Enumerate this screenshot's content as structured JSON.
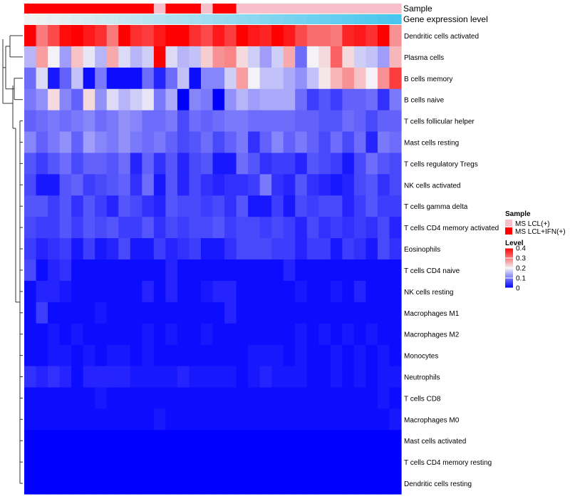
{
  "chart_data": {
    "type": "heatmap",
    "title": "",
    "annotation_tracks": [
      {
        "name": "Sample",
        "type": "categorical",
        "values": [
          "MS LCL+IFN(+)",
          "MS LCL+IFN(+)",
          "MS LCL+IFN(+)",
          "MS LCL+IFN(+)",
          "MS LCL+IFN(+)",
          "MS LCL+IFN(+)",
          "MS LCL+IFN(+)",
          "MS LCL+IFN(+)",
          "MS LCL+IFN(+)",
          "MS LCL+IFN(+)",
          "MS LCL+IFN(+)",
          "MS LCL(+)",
          "MS LCL+IFN(+)",
          "MS LCL+IFN(+)",
          "MS LCL+IFN(+)",
          "MS LCL(+)",
          "MS LCL+IFN(+)",
          "MS LCL+IFN(+)",
          "MS LCL(+)",
          "MS LCL(+)",
          "MS LCL(+)",
          "MS LCL(+)",
          "MS LCL(+)",
          "MS LCL(+)",
          "MS LCL(+)",
          "MS LCL(+)",
          "MS LCL(+)",
          "MS LCL(+)",
          "MS LCL(+)",
          "MS LCL(+)",
          "MS LCL(+)",
          "MS LCL(+)"
        ]
      },
      {
        "name": "Gene expression level",
        "type": "continuous",
        "from_color": "#f2f2f2",
        "to_color": "#48c6ee"
      }
    ],
    "rows": [
      "Dendritic cells activated",
      "Plasma cells",
      "B cells memory",
      "B cells naive",
      "T cells follicular helper",
      "Mast cells resting",
      "T cells regulatory  Tregs",
      "NK cells activated",
      "T cells gamma delta",
      "T cells CD4 memory activated",
      "Eosinophils",
      "T cells CD4 naive",
      "NK cells resting",
      "Macrophages M1",
      "Macrophages M2",
      "Monocytes",
      "Neutrophils",
      "T cells CD8",
      "Macrophages M0",
      "Mast cells activated",
      "T cells CD4 memory resting",
      "Dendritic cells resting"
    ],
    "n_columns": 32,
    "values": [
      [
        0.4,
        0.3,
        0.34,
        0.39,
        0.4,
        0.38,
        0.36,
        0.3,
        0.4,
        0.36,
        0.35,
        0.38,
        0.4,
        0.4,
        0.36,
        0.34,
        0.38,
        0.35,
        0.4,
        0.38,
        0.37,
        0.4,
        0.38,
        0.34,
        0.31,
        0.31,
        0.3,
        0.37,
        0.38,
        0.36,
        0.4,
        0.28
      ],
      [
        0.15,
        0.27,
        0.2,
        0.13,
        0.24,
        0.19,
        0.15,
        0.26,
        0.18,
        0.15,
        0.17,
        0.4,
        0.18,
        0.15,
        0.16,
        0.23,
        0.28,
        0.29,
        0.22,
        0.17,
        0.13,
        0.17,
        0.26,
        0.09,
        0.2,
        0.22,
        0.32,
        0.22,
        0.17,
        0.16,
        0.13,
        0.25
      ],
      [
        0.09,
        0.18,
        0.02,
        0.08,
        0.16,
        0.01,
        0.1,
        0.01,
        0.01,
        0.01,
        0.09,
        0.03,
        0.09,
        0.16,
        0.01,
        0.11,
        0.11,
        0.17,
        0.27,
        0.2,
        0.16,
        0.16,
        0.14,
        0.12,
        0.16,
        0.21,
        0.25,
        0.28,
        0.24,
        0.2,
        0.28,
        0.35
      ],
      [
        0.1,
        0.12,
        0.22,
        0.11,
        0.08,
        0.22,
        0.12,
        0.18,
        0.15,
        0.17,
        0.19,
        0.1,
        0.14,
        0.0,
        0.11,
        0.1,
        0.0,
        0.12,
        0.15,
        0.13,
        0.14,
        0.14,
        0.14,
        0.09,
        0.05,
        0.07,
        0.05,
        0.08,
        0.08,
        0.09,
        0.04,
        0.1
      ],
      [
        0.08,
        0.09,
        0.1,
        0.09,
        0.1,
        0.11,
        0.09,
        0.1,
        0.12,
        0.11,
        0.09,
        0.09,
        0.1,
        0.06,
        0.09,
        0.08,
        0.09,
        0.1,
        0.1,
        0.09,
        0.09,
        0.09,
        0.09,
        0.08,
        0.08,
        0.07,
        0.07,
        0.09,
        0.08,
        0.06,
        0.08,
        0.08
      ],
      [
        0.11,
        0.08,
        0.1,
        0.12,
        0.08,
        0.13,
        0.11,
        0.1,
        0.12,
        0.1,
        0.09,
        0.1,
        0.08,
        0.06,
        0.07,
        0.09,
        0.06,
        0.08,
        0.1,
        0.04,
        0.08,
        0.11,
        0.08,
        0.1,
        0.08,
        0.06,
        0.09,
        0.06,
        0.09,
        0.03,
        0.1,
        0.09
      ],
      [
        0.07,
        0.05,
        0.07,
        0.09,
        0.06,
        0.08,
        0.08,
        0.07,
        0.09,
        0.03,
        0.08,
        0.04,
        0.07,
        0.03,
        0.06,
        0.07,
        0.02,
        0.02,
        0.09,
        0.07,
        0.04,
        0.05,
        0.05,
        0.03,
        0.07,
        0.06,
        0.05,
        0.02,
        0.06,
        0.09,
        0.07,
        0.06
      ],
      [
        0.06,
        0.02,
        0.02,
        0.07,
        0.08,
        0.05,
        0.06,
        0.07,
        0.08,
        0.04,
        0.09,
        0.02,
        0.07,
        0.03,
        0.06,
        0.04,
        0.03,
        0.04,
        0.04,
        0.05,
        0.1,
        0.04,
        0.03,
        0.07,
        0.04,
        0.03,
        0.02,
        0.03,
        0.06,
        0.07,
        0.04,
        0.06
      ],
      [
        0.07,
        0.07,
        0.05,
        0.07,
        0.04,
        0.07,
        0.05,
        0.03,
        0.07,
        0.06,
        0.04,
        0.03,
        0.07,
        0.06,
        0.06,
        0.05,
        0.06,
        0.04,
        0.07,
        0.02,
        0.02,
        0.05,
        0.02,
        0.06,
        0.05,
        0.06,
        0.06,
        0.03,
        0.05,
        0.07,
        0.05,
        0.05
      ],
      [
        0.06,
        0.05,
        0.05,
        0.07,
        0.05,
        0.07,
        0.06,
        0.07,
        0.05,
        0.05,
        0.07,
        0.04,
        0.06,
        0.05,
        0.06,
        0.06,
        0.07,
        0.05,
        0.06,
        0.06,
        0.05,
        0.06,
        0.05,
        0.03,
        0.06,
        0.04,
        0.05,
        0.04,
        0.05,
        0.04,
        0.06,
        0.03
      ],
      [
        0.05,
        0.03,
        0.04,
        0.05,
        0.02,
        0.05,
        0.02,
        0.03,
        0.06,
        0.02,
        0.02,
        0.05,
        0.03,
        0.04,
        0.05,
        0.02,
        0.02,
        0.04,
        0.06,
        0.06,
        0.06,
        0.05,
        0.05,
        0.03,
        0.05,
        0.05,
        0.02,
        0.05,
        0.04,
        0.02,
        0.06,
        0.04
      ],
      [
        0.06,
        0.01,
        0.03,
        0.04,
        0.01,
        0.01,
        0.01,
        0.01,
        0.01,
        0.01,
        0.01,
        0.01,
        0.03,
        0.01,
        0.01,
        0.01,
        0.01,
        0.01,
        0.01,
        0.01,
        0.01,
        0.01,
        0.03,
        0.01,
        0.01,
        0.01,
        0.01,
        0.01,
        0.01,
        0.01,
        0.01,
        0.01
      ],
      [
        0.01,
        0.03,
        0.03,
        0.02,
        0.01,
        0.01,
        0.01,
        0.01,
        0.01,
        0.01,
        0.03,
        0.01,
        0.03,
        0.01,
        0.01,
        0.02,
        0.03,
        0.03,
        0.01,
        0.01,
        0.01,
        0.01,
        0.01,
        0.02,
        0.01,
        0.01,
        0.02,
        0.01,
        0.03,
        0.01,
        0.01,
        0.01
      ],
      [
        0.01,
        0.05,
        0.01,
        0.01,
        0.01,
        0.01,
        0.02,
        0.01,
        0.01,
        0.01,
        0.01,
        0.01,
        0.01,
        0.01,
        0.01,
        0.01,
        0.01,
        0.03,
        0.01,
        0.01,
        0.01,
        0.01,
        0.01,
        0.01,
        0.01,
        0.01,
        0.01,
        0.01,
        0.01,
        0.01,
        0.01,
        0.01
      ],
      [
        0.01,
        0.01,
        0.02,
        0.01,
        0.02,
        0.01,
        0.01,
        0.01,
        0.01,
        0.01,
        0.02,
        0.01,
        0.02,
        0.01,
        0.01,
        0.02,
        0.01,
        0.01,
        0.01,
        0.01,
        0.01,
        0.01,
        0.01,
        0.02,
        0.01,
        0.02,
        0.01,
        0.02,
        0.01,
        0.02,
        0.01,
        0.01
      ],
      [
        0.01,
        0.01,
        0.02,
        0.02,
        0.01,
        0.02,
        0.01,
        0.02,
        0.02,
        0.01,
        0.02,
        0.01,
        0.01,
        0.01,
        0.01,
        0.01,
        0.01,
        0.01,
        0.01,
        0.02,
        0.02,
        0.02,
        0.01,
        0.02,
        0.01,
        0.01,
        0.02,
        0.01,
        0.02,
        0.01,
        0.02,
        0.01
      ],
      [
        0.04,
        0.03,
        0.04,
        0.03,
        0.01,
        0.03,
        0.03,
        0.03,
        0.03,
        0.02,
        0.02,
        0.02,
        0.02,
        0.03,
        0.02,
        0.02,
        0.02,
        0.02,
        0.01,
        0.02,
        0.03,
        0.02,
        0.02,
        0.02,
        0.01,
        0.01,
        0.02,
        0.01,
        0.02,
        0.01,
        0.02,
        0.02
      ],
      [
        0.01,
        0.01,
        0.01,
        0.01,
        0.01,
        0.01,
        0.02,
        0.01,
        0.01,
        0.01,
        0.01,
        0.01,
        0.01,
        0.01,
        0.01,
        0.01,
        0.01,
        0.01,
        0.01,
        0.01,
        0.01,
        0.01,
        0.01,
        0.01,
        0.01,
        0.01,
        0.01,
        0.01,
        0.01,
        0.01,
        0.02,
        0.01
      ],
      [
        0.01,
        0.01,
        0.01,
        0.01,
        0.01,
        0.01,
        0.01,
        0.01,
        0.01,
        0.01,
        0.01,
        0.02,
        0.01,
        0.01,
        0.01,
        0.01,
        0.01,
        0.01,
        0.01,
        0.01,
        0.01,
        0.01,
        0.01,
        0.01,
        0.01,
        0.01,
        0.01,
        0.01,
        0.01,
        0.01,
        0.01,
        0.02
      ],
      [
        0,
        0,
        0,
        0,
        0,
        0,
        0,
        0,
        0,
        0,
        0,
        0,
        0,
        0,
        0,
        0,
        0,
        0,
        0,
        0,
        0,
        0,
        0,
        0,
        0,
        0,
        0,
        0,
        0,
        0,
        0,
        0
      ],
      [
        0,
        0,
        0,
        0,
        0,
        0,
        0,
        0,
        0,
        0,
        0,
        0,
        0,
        0,
        0,
        0,
        0,
        0,
        0,
        0,
        0,
        0,
        0,
        0,
        0,
        0,
        0,
        0,
        0,
        0,
        0,
        0
      ],
      [
        0,
        0,
        0,
        0,
        0,
        0,
        0,
        0,
        0,
        0,
        0,
        0,
        0,
        0,
        0,
        0,
        0,
        0,
        0,
        0,
        0,
        0,
        0,
        0,
        0,
        0,
        0,
        0,
        0,
        0,
        0,
        0
      ]
    ],
    "color_scale": {
      "min": 0,
      "mid": 0.2,
      "max": 0.4,
      "low": "#0000ff",
      "mid_color": "#f4f2f6",
      "high": "#ff0000"
    },
    "legends": [
      {
        "title": "Sample",
        "entries": [
          {
            "label": "MS LCL(+)",
            "color": "#f7bfca"
          },
          {
            "label": "MS LCL+IFN(+)",
            "color": "#ff0000"
          }
        ]
      },
      {
        "title": "Level",
        "type": "gradient",
        "ticks": [
          {
            "value": 0,
            "label": "0"
          },
          {
            "value": 0.1,
            "label": "0.1"
          },
          {
            "value": 0.2,
            "label": "0.2"
          },
          {
            "value": 0.3,
            "label": "0.3"
          },
          {
            "value": 0.4,
            "label": "0.4"
          }
        ]
      }
    ],
    "row_dendrogram": true,
    "dendrogram_position": "left"
  }
}
